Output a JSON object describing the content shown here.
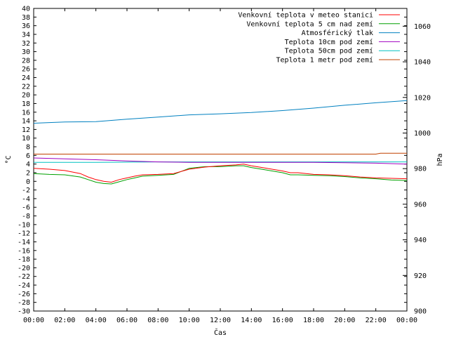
{
  "chart_data": {
    "type": "line",
    "title": "",
    "xlabel": "Čas",
    "ylabel": "°C",
    "y2label": "hPa",
    "x_ticks": [
      "00:00",
      "02:00",
      "04:00",
      "06:00",
      "08:00",
      "10:00",
      "12:00",
      "14:00",
      "16:00",
      "18:00",
      "20:00",
      "22:00",
      "00:00"
    ],
    "xlim_hours": [
      0,
      24
    ],
    "ylim": [
      -30,
      40
    ],
    "y_ticks": [
      -30,
      -28,
      -26,
      -24,
      -22,
      -20,
      -18,
      -16,
      -14,
      -12,
      -10,
      -8,
      -6,
      -4,
      -2,
      0,
      2,
      4,
      6,
      8,
      10,
      12,
      14,
      16,
      18,
      20,
      22,
      24,
      26,
      28,
      30,
      32,
      34,
      36,
      38,
      40
    ],
    "y2lim": [
      900,
      1070
    ],
    "y2_ticks": [
      900,
      920,
      940,
      960,
      980,
      1000,
      1020,
      1040,
      1060
    ],
    "grid": false,
    "legend_position": "top-right",
    "series": [
      {
        "name": "Venkovní teplota v meteo stanici",
        "color": "#ff0000",
        "axis": "left",
        "x": [
          0,
          1,
          2,
          3,
          3.5,
          4,
          4.5,
          5,
          5.5,
          6,
          6.5,
          7,
          8,
          9,
          10,
          11,
          12,
          13,
          13.5,
          14,
          15,
          16,
          16.5,
          17,
          18,
          19,
          20,
          21,
          22,
          23,
          24
        ],
        "y": [
          3.0,
          2.8,
          2.5,
          1.8,
          1.0,
          0.4,
          0.0,
          -0.2,
          0.4,
          0.8,
          1.2,
          1.5,
          1.6,
          1.8,
          2.8,
          3.3,
          3.6,
          3.8,
          4.0,
          3.6,
          3.0,
          2.4,
          2.0,
          2.0,
          1.6,
          1.5,
          1.3,
          1.0,
          0.8,
          0.7,
          0.6
        ]
      },
      {
        "name": "Venkovní teplota 5 cm nad zemí",
        "color": "#00a000",
        "axis": "left",
        "x": [
          0,
          1,
          2,
          3,
          3.5,
          4,
          4.5,
          5,
          5.5,
          6,
          6.5,
          7,
          8,
          9,
          10,
          11,
          12,
          13,
          13.5,
          14,
          15,
          16,
          16.5,
          17,
          18,
          19,
          20,
          21,
          22,
          23,
          24
        ],
        "y": [
          1.8,
          1.6,
          1.5,
          1.0,
          0.4,
          -0.2,
          -0.5,
          -0.6,
          -0.1,
          0.4,
          0.8,
          1.2,
          1.4,
          1.6,
          3.0,
          3.4,
          3.4,
          3.6,
          3.6,
          3.2,
          2.6,
          2.0,
          1.5,
          1.5,
          1.4,
          1.3,
          1.1,
          0.8,
          0.6,
          0.3,
          0.2
        ]
      },
      {
        "name": "Atmosférický tlak",
        "color": "#0080c0",
        "axis": "right",
        "x": [
          0,
          2,
          4,
          6,
          8,
          10,
          12,
          14,
          16,
          18,
          20,
          22,
          24
        ],
        "y": [
          1005.5,
          1006.2,
          1006.4,
          1007.8,
          1009.0,
          1010.2,
          1010.8,
          1011.5,
          1012.6,
          1014.0,
          1015.6,
          1017.0,
          1018.2
        ]
      },
      {
        "name": "Teplota 10cm pod zemí",
        "color": "#a000c0",
        "axis": "left",
        "x": [
          0,
          2,
          4,
          6,
          8,
          10,
          12,
          14,
          16,
          18,
          20,
          22,
          24
        ],
        "y": [
          5.4,
          5.2,
          5.0,
          4.7,
          4.5,
          4.4,
          4.4,
          4.4,
          4.4,
          4.4,
          4.3,
          4.2,
          4.0
        ]
      },
      {
        "name": "Teplota 50cm pod zemí",
        "color": "#00c0c0",
        "axis": "left",
        "x": [
          0,
          4,
          8,
          12,
          16,
          20,
          24
        ],
        "y": [
          4.4,
          4.4,
          4.5,
          4.5,
          4.5,
          4.5,
          4.5
        ]
      },
      {
        "name": "Teplota 1 metr pod zemí",
        "color": "#c04000",
        "axis": "left",
        "x": [
          0,
          4,
          8,
          12,
          16,
          20,
          22,
          22.3,
          24
        ],
        "y": [
          6.3,
          6.3,
          6.3,
          6.3,
          6.3,
          6.3,
          6.3,
          6.5,
          6.5
        ]
      }
    ]
  }
}
